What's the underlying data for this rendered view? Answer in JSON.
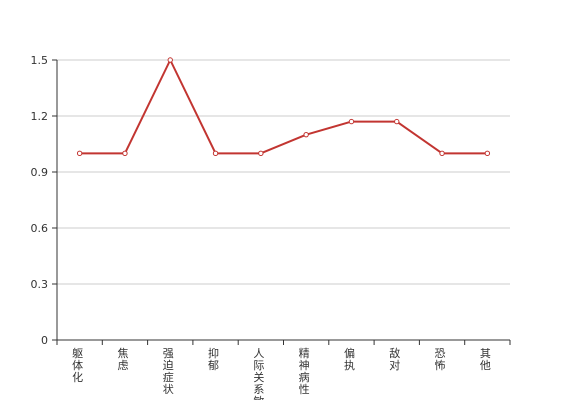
{
  "chart_data": {
    "type": "line",
    "categories": [
      "躯体化",
      "焦虑",
      "强迫症状",
      "抑郁",
      "人际关系敏感",
      "精神病性",
      "偏执",
      "敌对",
      "恐怖",
      "其他"
    ],
    "series": [
      {
        "values": [
          1.0,
          1.0,
          1.5,
          1.0,
          1.0,
          1.1,
          1.17,
          1.17,
          1.0,
          1.0
        ]
      }
    ],
    "yticks": [
      "0",
      "0.3",
      "0.6",
      "0.9",
      "1.2",
      "1.5"
    ],
    "ylim": [
      0,
      1.5
    ],
    "grid": true,
    "line_color": "#c23531"
  }
}
